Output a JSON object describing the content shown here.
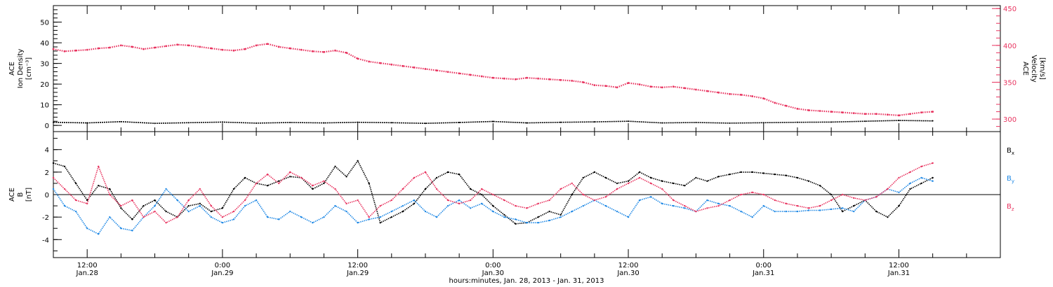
{
  "chart_data": [
    {
      "type": "scatter",
      "panel": "plasma",
      "left_axis": {
        "label_lines": [
          "ACE",
          "Ion Density",
          "[cm⁻³]"
        ],
        "range": [
          -3,
          58
        ],
        "ticks": [
          "0",
          "10",
          "20",
          "30",
          "40",
          "50"
        ],
        "color": "#000000"
      },
      "right_axis": {
        "label_lines": [
          "ACE",
          "Velocity",
          "[km/s]"
        ],
        "range": [
          283,
          454
        ],
        "ticks": [
          "300",
          "350",
          "400",
          "450"
        ],
        "color": "#e8335f"
      },
      "series": [
        {
          "axis": "left",
          "color": "#000000",
          "x": [
            0,
            3,
            6,
            9,
            12,
            15,
            18,
            21,
            24,
            27,
            30,
            33,
            36,
            39,
            42,
            45,
            48,
            51,
            54,
            57,
            60,
            63,
            66,
            69,
            72,
            75,
            78
          ],
          "y": [
            1.5,
            1.2,
            1.8,
            1.0,
            1.3,
            1.6,
            1.1,
            1.4,
            1.2,
            1.5,
            1.3,
            1.0,
            1.4,
            1.9,
            1.2,
            1.5,
            1.7,
            2.0,
            1.2,
            1.4,
            1.1,
            1.3,
            1.5,
            1.6,
            2.0,
            2.4,
            2.2
          ]
        },
        {
          "axis": "right",
          "color": "#e8335f",
          "x": [
            0,
            1,
            2,
            3,
            4,
            5,
            6,
            7,
            8,
            9,
            10,
            11,
            12,
            13,
            14,
            15,
            16,
            17,
            18,
            19,
            20,
            21,
            22,
            23,
            24,
            25,
            26,
            27,
            28,
            29,
            30,
            31,
            32,
            33,
            34,
            35,
            36,
            37,
            38,
            39,
            40,
            41,
            42,
            43,
            44,
            45,
            46,
            47,
            48,
            49,
            50,
            51,
            52,
            53,
            54,
            55,
            56,
            57,
            58,
            59,
            60,
            61,
            62,
            63,
            64,
            65,
            66,
            67,
            68,
            69,
            70,
            71,
            72,
            73,
            74,
            75,
            76,
            77,
            78
          ],
          "y": [
            395,
            392,
            393,
            394,
            396,
            397,
            400,
            398,
            395,
            397,
            399,
            401,
            400,
            398,
            396,
            394,
            393,
            395,
            400,
            402,
            398,
            396,
            394,
            392,
            391,
            393,
            390,
            382,
            378,
            376,
            374,
            372,
            370,
            368,
            366,
            364,
            362,
            360,
            358,
            356,
            355,
            354,
            356,
            355,
            354,
            353,
            352,
            350,
            346,
            345,
            343,
            349,
            347,
            344,
            343,
            344,
            342,
            340,
            338,
            336,
            334,
            333,
            331,
            328,
            322,
            318,
            314,
            312,
            311,
            310,
            309,
            308,
            307,
            307,
            306,
            305,
            307,
            309,
            310
          ]
        }
      ]
    },
    {
      "type": "scatter",
      "panel": "imf",
      "left_axis": {
        "label_lines": [
          "ACE",
          "B",
          "[nT]"
        ],
        "range": [
          -5.6,
          5.6
        ],
        "ticks": [
          "-4",
          "-2",
          "0",
          "2",
          "4"
        ]
      },
      "legend_position": "right",
      "legend": [
        {
          "label": "Bx",
          "color": "#000000"
        },
        {
          "label": "By",
          "color": "#1e88e5"
        },
        {
          "label": "Bz",
          "color": "#e8335f"
        }
      ],
      "series": [
        {
          "name": "Bx",
          "color": "#000000",
          "x": [
            0,
            1,
            2,
            3,
            4,
            5,
            6,
            7,
            8,
            9,
            10,
            11,
            12,
            13,
            14,
            15,
            16,
            17,
            18,
            19,
            20,
            21,
            22,
            23,
            24,
            25,
            26,
            27,
            28,
            29,
            30,
            31,
            32,
            33,
            34,
            35,
            36,
            37,
            38,
            39,
            40,
            41,
            42,
            43,
            44,
            45,
            46,
            47,
            48,
            49,
            50,
            51,
            52,
            53,
            54,
            55,
            56,
            57,
            58,
            59,
            60,
            61,
            62,
            63,
            64,
            65,
            66,
            67,
            68,
            69,
            70,
            71,
            72,
            73,
            74,
            75,
            76,
            77,
            78
          ],
          "y": [
            2.8,
            2.5,
            1.0,
            -0.5,
            0.8,
            0.5,
            -1.2,
            -2.2,
            -1.0,
            -0.5,
            -1.5,
            -2.0,
            -1.0,
            -0.8,
            -1.5,
            -1.2,
            0.5,
            1.5,
            1.0,
            0.8,
            1.2,
            1.6,
            1.5,
            0.5,
            1.0,
            2.5,
            1.6,
            3.0,
            1.0,
            -2.5,
            -2.0,
            -1.5,
            -0.8,
            0.5,
            1.5,
            2.0,
            1.8,
            0.5,
            0.0,
            -1.0,
            -1.8,
            -2.6,
            -2.5,
            -2.0,
            -1.5,
            -1.8,
            0.0,
            1.5,
            2.0,
            1.5,
            1.0,
            1.2,
            2.0,
            1.5,
            1.2,
            1.0,
            0.8,
            1.5,
            1.2,
            1.6,
            1.8,
            2.0,
            2.0,
            1.9,
            1.8,
            1.7,
            1.5,
            1.2,
            0.8,
            0.0,
            -1.5,
            -1.0,
            -0.5,
            -1.5,
            -2.0,
            -1.0,
            0.5,
            1.0,
            1.5
          ]
        },
        {
          "name": "By",
          "color": "#1e88e5",
          "x": [
            0,
            1,
            2,
            3,
            4,
            5,
            6,
            7,
            8,
            9,
            10,
            11,
            12,
            13,
            14,
            15,
            16,
            17,
            18,
            19,
            20,
            21,
            22,
            23,
            24,
            25,
            26,
            27,
            28,
            29,
            30,
            31,
            32,
            33,
            34,
            35,
            36,
            37,
            38,
            39,
            40,
            41,
            42,
            43,
            44,
            45,
            46,
            47,
            48,
            49,
            50,
            51,
            52,
            53,
            54,
            55,
            56,
            57,
            58,
            59,
            60,
            61,
            62,
            63,
            64,
            65,
            66,
            67,
            68,
            69,
            70,
            71,
            72,
            73,
            74,
            75,
            76,
            77,
            78
          ],
          "y": [
            0.5,
            -1.0,
            -1.5,
            -3.0,
            -3.5,
            -2.0,
            -3.0,
            -3.2,
            -2.0,
            -1.0,
            0.5,
            -0.5,
            -1.5,
            -1.0,
            -2.0,
            -2.5,
            -2.2,
            -1.0,
            -0.5,
            -2.0,
            -2.2,
            -1.5,
            -2.0,
            -2.5,
            -2.0,
            -1.0,
            -1.5,
            -2.5,
            -2.2,
            -2.0,
            -1.5,
            -1.0,
            -0.5,
            -1.5,
            -2.0,
            -1.0,
            -0.5,
            -1.2,
            -0.8,
            -1.5,
            -2.0,
            -2.2,
            -2.5,
            -2.5,
            -2.3,
            -2.0,
            -1.5,
            -1.0,
            -0.5,
            -1.0,
            -1.5,
            -2.0,
            -0.5,
            -0.2,
            -0.8,
            -1.0,
            -1.2,
            -1.5,
            -0.5,
            -0.8,
            -1.0,
            -1.5,
            -2.0,
            -1.0,
            -1.5,
            -1.5,
            -1.5,
            -1.4,
            -1.4,
            -1.3,
            -1.2,
            -1.5,
            -0.5,
            -0.2,
            0.5,
            0.2,
            1.0,
            1.5,
            1.2
          ]
        },
        {
          "name": "Bz",
          "color": "#e8335f",
          "x": [
            0,
            1,
            2,
            3,
            4,
            5,
            6,
            7,
            8,
            9,
            10,
            11,
            12,
            13,
            14,
            15,
            16,
            17,
            18,
            19,
            20,
            21,
            22,
            23,
            24,
            25,
            26,
            27,
            28,
            29,
            30,
            31,
            32,
            33,
            34,
            35,
            36,
            37,
            38,
            39,
            40,
            41,
            42,
            43,
            44,
            45,
            46,
            47,
            48,
            49,
            50,
            51,
            52,
            53,
            54,
            55,
            56,
            57,
            58,
            59,
            60,
            61,
            62,
            63,
            64,
            65,
            66,
            67,
            68,
            69,
            70,
            71,
            72,
            73,
            74,
            75,
            76,
            77,
            78
          ],
          "y": [
            1.5,
            0.5,
            -0.5,
            -0.8,
            2.5,
            0.0,
            -1.0,
            -0.5,
            -2.0,
            -1.5,
            -2.5,
            -2.0,
            -0.5,
            0.5,
            -1.0,
            -2.0,
            -1.5,
            -0.5,
            1.0,
            1.8,
            1.0,
            2.0,
            1.5,
            0.8,
            1.2,
            0.5,
            -0.8,
            -0.5,
            -2.0,
            -1.0,
            -0.5,
            0.5,
            1.5,
            2.0,
            0.5,
            -0.5,
            -0.8,
            -0.5,
            0.5,
            0.0,
            -0.5,
            -1.0,
            -1.2,
            -0.8,
            -0.5,
            0.5,
            1.0,
            0.0,
            -0.5,
            -0.2,
            0.5,
            1.0,
            1.5,
            1.0,
            0.5,
            -0.5,
            -1.0,
            -1.5,
            -1.2,
            -1.0,
            -0.5,
            0.0,
            0.2,
            0.0,
            -0.5,
            -0.8,
            -1.0,
            -1.2,
            -1.0,
            -0.5,
            0.0,
            -0.3,
            -0.5,
            -0.2,
            0.5,
            1.5,
            2.0,
            2.5,
            2.8
          ]
        }
      ]
    }
  ],
  "time_axis": {
    "title": "hours:minutes, Jan. 28, 2013 - Jan. 31, 2013",
    "range": [
      0,
      84
    ],
    "ticks": [
      {
        "x": 3,
        "time": "12:00",
        "date": "Jan.28"
      },
      {
        "x": 15,
        "time": "0:00",
        "date": "Jan.29"
      },
      {
        "x": 27,
        "time": "12:00",
        "date": "Jan.29"
      },
      {
        "x": 39,
        "time": "0:00",
        "date": "Jan.30"
      },
      {
        "x": 51,
        "time": "12:00",
        "date": "Jan.30"
      },
      {
        "x": 63,
        "time": "0:00",
        "date": "Jan.31"
      },
      {
        "x": 75,
        "time": "12:00",
        "date": "Jan.31"
      }
    ]
  }
}
